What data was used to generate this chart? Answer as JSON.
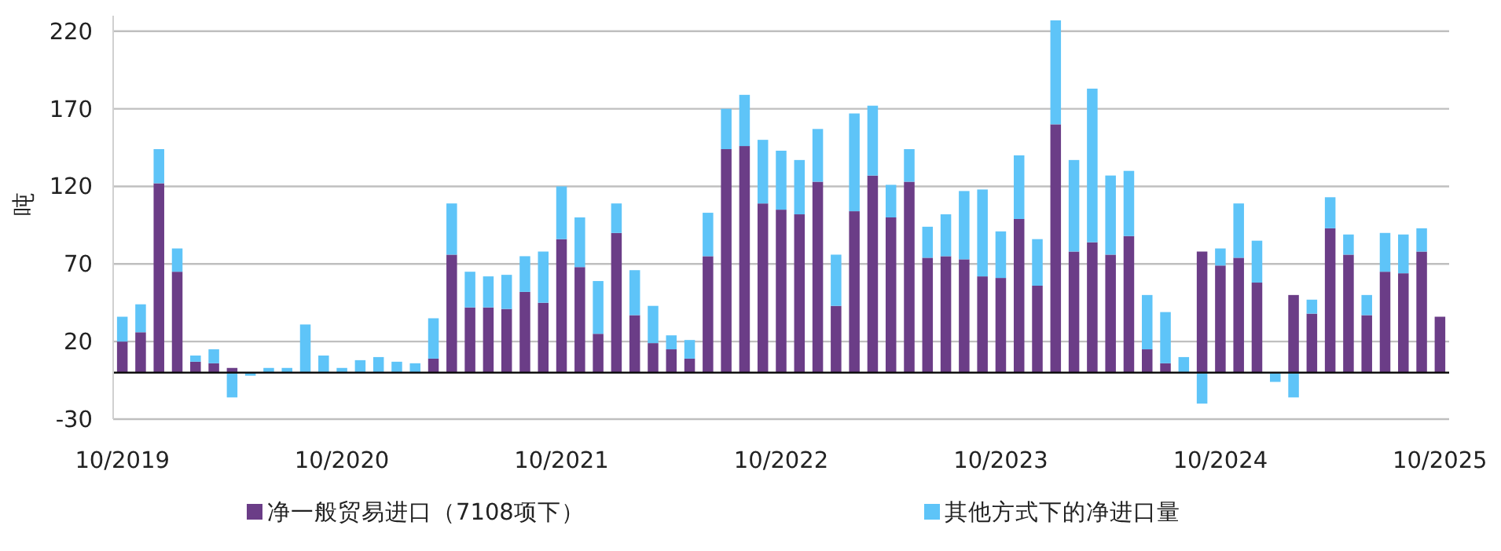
{
  "chart_data": {
    "type": "bar",
    "stacked": true,
    "ylabel": "吨",
    "categories": [
      "10/2019",
      null,
      null,
      null,
      null,
      null,
      null,
      null,
      null,
      null,
      null,
      null,
      "10/2020",
      null,
      null,
      null,
      null,
      null,
      null,
      null,
      null,
      null,
      null,
      null,
      "10/2021",
      null,
      null,
      null,
      null,
      null,
      null,
      null,
      null,
      null,
      null,
      null,
      "10/2022",
      null,
      null,
      null,
      null,
      null,
      null,
      null,
      null,
      null,
      null,
      null,
      "10/2023",
      null,
      null,
      null,
      null,
      null,
      null,
      null,
      null,
      null,
      null,
      null,
      "10/2024",
      null,
      null,
      null,
      null,
      null,
      null,
      null,
      null,
      null,
      null,
      null,
      "10/2025"
    ],
    "series": [
      {
        "name": "净一般贸易进口（7108项下）",
        "color": "#6b3d87",
        "values": [
          20,
          26,
          122,
          65,
          7,
          6,
          3,
          0,
          0,
          0,
          0,
          0,
          0,
          0,
          0,
          0,
          0,
          9,
          76,
          42,
          42,
          41,
          52,
          45,
          86,
          68,
          25,
          90,
          37,
          19,
          15,
          9,
          75,
          144,
          146,
          109,
          105,
          102,
          123,
          43,
          104,
          127,
          100,
          123,
          74,
          75,
          73,
          62,
          61,
          99,
          56,
          160,
          78,
          84,
          76,
          88,
          15,
          6,
          0,
          78,
          69,
          74,
          58,
          0,
          50,
          38,
          93,
          76,
          37,
          65,
          64,
          78,
          36
        ]
      },
      {
        "name": "其他方式下的净进口量",
        "color": "#5ec4f8",
        "values": [
          16,
          18,
          22,
          15,
          4,
          9,
          -16,
          -2,
          3,
          3,
          31,
          11,
          3,
          8,
          10,
          7,
          6,
          26,
          33,
          23,
          20,
          22,
          23,
          33,
          34,
          32,
          34,
          19,
          29,
          24,
          9,
          12,
          28,
          26,
          33,
          41,
          38,
          35,
          34,
          33,
          63,
          45,
          21,
          21,
          20,
          27,
          44,
          56,
          30,
          41,
          30,
          67,
          59,
          99,
          51,
          42,
          35,
          33,
          10,
          -20,
          11,
          35,
          27,
          -6,
          -16,
          9,
          20,
          13,
          13,
          25,
          25,
          15,
          0
        ]
      }
    ],
    "ylim": [
      -30,
      230
    ],
    "yticks": [
      -30,
      20,
      70,
      120,
      170,
      220
    ],
    "grid": "y",
    "legend": "bottom"
  }
}
